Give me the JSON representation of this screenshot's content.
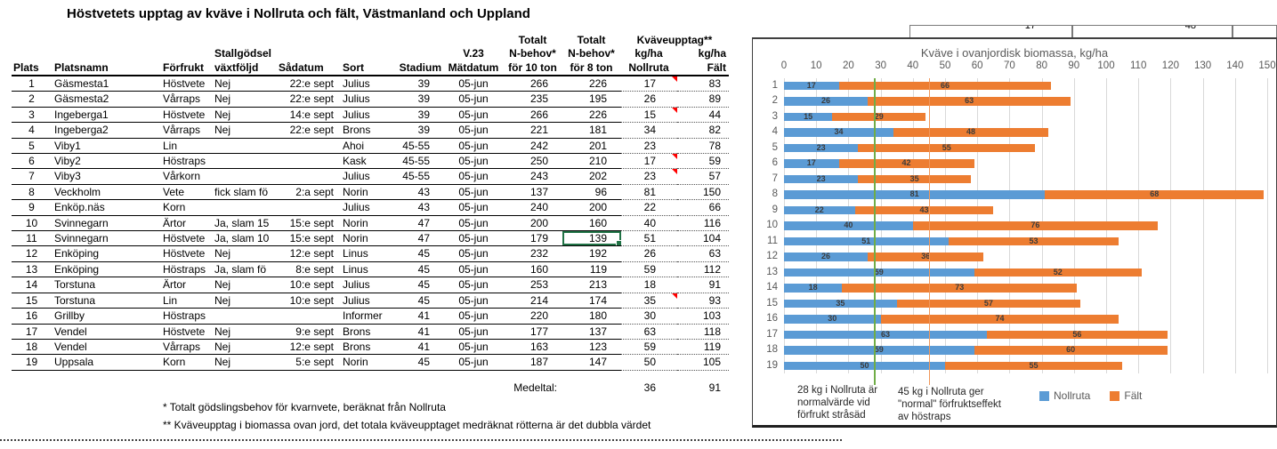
{
  "title": "Höstvetets upptag av kväve i Nollruta och fält, Västmanland och Uppland",
  "table": {
    "headers": {
      "plats": "Plats",
      "platsnamn": "Platsnamn",
      "forfrukt": "Förfrukt",
      "stallgodsel": "Stallgödsel",
      "vaxtfoljd": "växtföljd",
      "sadatum": "Sådatum",
      "sort": "Sort",
      "stadium": "Stadium",
      "v23": "V.23",
      "matdatum": "Mätdatum",
      "totalt": "Totalt",
      "nbehov": "N-behov*",
      "for10": "för 10 ton",
      "for8": "för 8 ton",
      "kvaveupptag": "Kväveupptag**",
      "kgha": "kg/ha",
      "nollruta": "Nollruta",
      "falt": "Fält"
    },
    "rows": [
      {
        "plats": "1",
        "platsnamn": "Gäsmesta1",
        "forfrukt": "Höstvete",
        "vaxtfoljd": "Nej",
        "sadatum": "22:e sept",
        "sort": "Julius",
        "stadium": "39",
        "matdatum": "05-jun",
        "n10": "266",
        "n8": "226",
        "nollruta": "17",
        "falt": "83",
        "note": true
      },
      {
        "plats": "2",
        "platsnamn": "Gäsmesta2",
        "forfrukt": "Vårraps",
        "vaxtfoljd": "Nej",
        "sadatum": "22:e sept",
        "sort": "Julius",
        "stadium": "39",
        "matdatum": "05-jun",
        "n10": "235",
        "n8": "195",
        "nollruta": "26",
        "falt": "89"
      },
      {
        "plats": "3",
        "platsnamn": "Ingeberga1",
        "forfrukt": "Höstvete",
        "vaxtfoljd": "Nej",
        "sadatum": "14:e sept",
        "sort": "Julius",
        "stadium": "39",
        "matdatum": "05-jun",
        "n10": "266",
        "n8": "226",
        "nollruta": "15",
        "falt": "44",
        "note": true
      },
      {
        "plats": "4",
        "platsnamn": "Ingeberga2",
        "forfrukt": "Vårraps",
        "vaxtfoljd": "Nej",
        "sadatum": "22:e sept",
        "sort": "Brons",
        "stadium": "39",
        "matdatum": "05-jun",
        "n10": "221",
        "n8": "181",
        "nollruta": "34",
        "falt": "82"
      },
      {
        "plats": "5",
        "platsnamn": "Viby1",
        "forfrukt": "Lin",
        "vaxtfoljd": "",
        "sadatum": "",
        "sort": "Ahoi",
        "stadium": "45-55",
        "matdatum": "05-jun",
        "n10": "242",
        "n8": "201",
        "nollruta": "23",
        "falt": "78"
      },
      {
        "plats": "6",
        "platsnamn": "Viby2",
        "forfrukt": "Höstraps",
        "vaxtfoljd": "",
        "sadatum": "",
        "sort": "Kask",
        "stadium": "45-55",
        "matdatum": "05-jun",
        "n10": "250",
        "n8": "210",
        "nollruta": "17",
        "falt": "59",
        "note": true
      },
      {
        "plats": "7",
        "platsnamn": "Viby3",
        "forfrukt": "Vårkorn",
        "vaxtfoljd": "",
        "sadatum": "",
        "sort": "Julius",
        "stadium": "45-55",
        "matdatum": "05-jun",
        "n10": "243",
        "n8": "202",
        "nollruta": "23",
        "falt": "57",
        "note": true
      },
      {
        "plats": "8",
        "platsnamn": "Veckholm",
        "forfrukt": "Vete",
        "vaxtfoljd": "fick slam fö",
        "sadatum": "2:a sept",
        "sort": "Norin",
        "stadium": "43",
        "matdatum": "05-jun",
        "n10": "137",
        "n8": "96",
        "nollruta": "81",
        "falt": "150"
      },
      {
        "plats": "9",
        "platsnamn": "Enköp.näs",
        "forfrukt": "Korn",
        "vaxtfoljd": "",
        "sadatum": "",
        "sort": "Julius",
        "stadium": "43",
        "matdatum": "05-jun",
        "n10": "240",
        "n8": "200",
        "nollruta": "22",
        "falt": "66"
      },
      {
        "plats": "10",
        "platsnamn": "Svinnegarn",
        "forfrukt": "Ärtor",
        "vaxtfoljd": "Ja, slam 15",
        "sadatum": "15:e sept",
        "sort": "Norin",
        "stadium": "47",
        "matdatum": "05-jun",
        "n10": "200",
        "n8": "160",
        "nollruta": "40",
        "falt": "116"
      },
      {
        "plats": "11",
        "platsnamn": "Svinnegarn",
        "forfrukt": "Höstvete",
        "vaxtfoljd": "Ja, slam 10",
        "sadatum": "15:e sept",
        "sort": "Norin",
        "stadium": "47",
        "matdatum": "05-jun",
        "n10": "179",
        "n8": "139",
        "nollruta": "51",
        "falt": "104"
      },
      {
        "plats": "12",
        "platsnamn": "Enköping",
        "forfrukt": "Höstvete",
        "vaxtfoljd": "Nej",
        "sadatum": "12:e sept",
        "sort": "Linus",
        "stadium": "45",
        "matdatum": "05-jun",
        "n10": "232",
        "n8": "192",
        "nollruta": "26",
        "falt": "63"
      },
      {
        "plats": "13",
        "platsnamn": "Enköping",
        "forfrukt": "Höstraps",
        "vaxtfoljd": "Ja, slam fö",
        "sadatum": "8:e sept",
        "sort": "Linus",
        "stadium": "45",
        "matdatum": "05-jun",
        "n10": "160",
        "n8": "119",
        "nollruta": "59",
        "falt": "112"
      },
      {
        "plats": "14",
        "platsnamn": "Torstuna",
        "forfrukt": "Ärtor",
        "vaxtfoljd": "Nej",
        "sadatum": "10:e sept",
        "sort": "Julius",
        "stadium": "45",
        "matdatum": "05-jun",
        "n10": "253",
        "n8": "213",
        "nollruta": "18",
        "falt": "91"
      },
      {
        "plats": "15",
        "platsnamn": "Torstuna",
        "forfrukt": "Lin",
        "vaxtfoljd": "Nej",
        "sadatum": "10:e sept",
        "sort": "Julius",
        "stadium": "45",
        "matdatum": "05-jun",
        "n10": "214",
        "n8": "174",
        "nollruta": "35",
        "falt": "93",
        "note": true
      },
      {
        "plats": "16",
        "platsnamn": "Grillby",
        "forfrukt": "Höstraps",
        "vaxtfoljd": "",
        "sadatum": "",
        "sort": "Informer",
        "stadium": "41",
        "matdatum": "05-jun",
        "n10": "220",
        "n8": "180",
        "nollruta": "30",
        "falt": "103"
      },
      {
        "plats": "17",
        "platsnamn": "Vendel",
        "forfrukt": "Höstvete",
        "vaxtfoljd": "Nej",
        "sadatum": "9:e sept",
        "sort": "Brons",
        "stadium": "41",
        "matdatum": "05-jun",
        "n10": "177",
        "n8": "137",
        "nollruta": "63",
        "falt": "118"
      },
      {
        "plats": "18",
        "platsnamn": "Vendel",
        "forfrukt": "Vårraps",
        "vaxtfoljd": "Nej",
        "sadatum": "12:e sept",
        "sort": "Brons",
        "stadium": "41",
        "matdatum": "05-jun",
        "n10": "163",
        "n8": "123",
        "nollruta": "59",
        "falt": "119"
      },
      {
        "plats": "19",
        "platsnamn": "Uppsala",
        "forfrukt": "Korn",
        "vaxtfoljd": "Nej",
        "sadatum": "5:e sept",
        "sort": "Norin",
        "stadium": "45",
        "matdatum": "05-jun",
        "n10": "187",
        "n8": "147",
        "nollruta": "50",
        "falt": "105"
      }
    ],
    "selected": {
      "row": 10,
      "col": "n8"
    },
    "medeltal": {
      "label": "Medeltal:",
      "nollruta": "36",
      "falt": "91"
    },
    "footnotes": [
      "* Totalt gödslingsbehov för kvarnvete, beräknat från Nollruta",
      "** Kväveupptag i biomassa ovan jord, det totala kväveupptaget medräknat rötterna är det dubbla värdet"
    ]
  },
  "clipped_row": {
    "cells": [
      "17",
      "48"
    ]
  },
  "chart_data": {
    "type": "bar",
    "orientation": "horizontal",
    "stacked": true,
    "title": "Kväve i ovanjordisk biomassa, kg/ha",
    "categories": [
      "1",
      "2",
      "3",
      "4",
      "5",
      "6",
      "7",
      "8",
      "9",
      "10",
      "11",
      "12",
      "13",
      "14",
      "15",
      "16",
      "17",
      "18",
      "19"
    ],
    "series": [
      {
        "name": "Nollruta",
        "color": "#5B9BD5",
        "values": [
          17,
          26,
          15,
          34,
          23,
          17,
          23,
          81,
          22,
          40,
          51,
          26,
          59,
          18,
          35,
          30,
          63,
          59,
          50
        ]
      },
      {
        "name": "Fält",
        "color": "#ED7D31",
        "values": [
          66,
          63,
          29,
          48,
          55,
          42,
          35,
          68,
          43,
          76,
          53,
          36,
          52,
          73,
          57,
          74,
          56,
          60,
          55
        ]
      }
    ],
    "xlim": [
      0,
      150
    ],
    "xticks": [
      0,
      10,
      20,
      30,
      40,
      50,
      60,
      70,
      80,
      90,
      100,
      110,
      120,
      130,
      140,
      150
    ],
    "grid": true,
    "legend_position": "bottom",
    "annotations": [
      {
        "x": 28,
        "color": "#70AD47",
        "text": "28 kg i Nollruta är normalvärde vid förfrukt stråsäd"
      },
      {
        "x": 45,
        "color": "#F0975A",
        "text": "45 kg i Nollruta ger \"normal\" förfruktseffekt av höstraps"
      }
    ]
  }
}
